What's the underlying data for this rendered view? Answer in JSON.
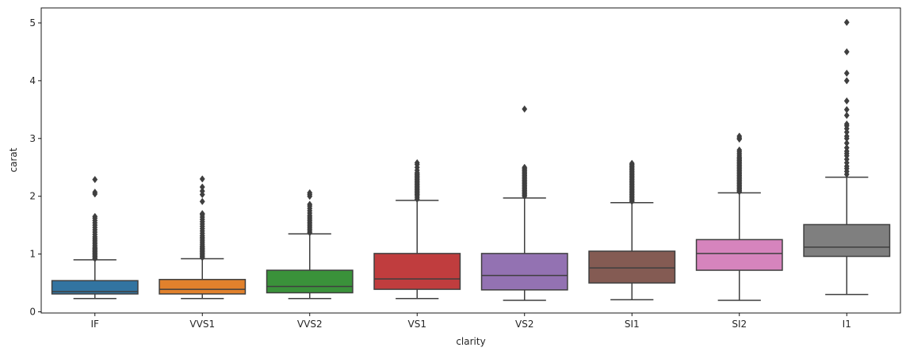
{
  "chart_data": {
    "type": "box",
    "title": "",
    "xlabel": "clarity",
    "ylabel": "carat",
    "ylim": [
      -0.02,
      5.26
    ],
    "yticks": [
      0,
      1,
      2,
      3,
      4,
      5
    ],
    "categories": [
      "IF",
      "VVS1",
      "VVS2",
      "VS1",
      "VS2",
      "SI1",
      "SI2",
      "I1"
    ],
    "colors": [
      "#3274a1",
      "#e1812c",
      "#3a923a",
      "#c03d3e",
      "#9372b2",
      "#845b53",
      "#d684bd",
      "#7f7f7f"
    ],
    "edge_color": "#3f3f3f",
    "boxes": [
      {
        "category": "IF",
        "whisker_low": 0.23,
        "q1": 0.31,
        "median": 0.35,
        "q3": 0.54,
        "whisker_high": 0.9,
        "outliers": [
          0.92,
          0.94,
          0.96,
          0.98,
          1.0,
          1.02,
          1.04,
          1.06,
          1.08,
          1.1,
          1.12,
          1.15,
          1.18,
          1.21,
          1.24,
          1.27,
          1.3,
          1.34,
          1.38,
          1.42,
          1.46,
          1.5,
          1.54,
          1.58,
          1.62,
          1.65,
          2.04,
          2.07,
          2.29
        ]
      },
      {
        "category": "VVS1",
        "whisker_low": 0.23,
        "q1": 0.31,
        "median": 0.39,
        "q3": 0.56,
        "whisker_high": 0.92,
        "outliers": [
          0.94,
          0.96,
          0.98,
          1.0,
          1.02,
          1.04,
          1.06,
          1.08,
          1.1,
          1.12,
          1.14,
          1.17,
          1.2,
          1.23,
          1.26,
          1.29,
          1.32,
          1.36,
          1.4,
          1.44,
          1.48,
          1.52,
          1.56,
          1.6,
          1.64,
          1.68,
          1.7,
          1.91,
          2.03,
          2.09,
          2.16,
          2.3
        ]
      },
      {
        "category": "VVS2",
        "whisker_low": 0.23,
        "q1": 0.33,
        "median": 0.44,
        "q3": 0.72,
        "whisker_high": 1.35,
        "outliers": [
          1.37,
          1.4,
          1.43,
          1.46,
          1.49,
          1.52,
          1.55,
          1.58,
          1.61,
          1.64,
          1.67,
          1.71,
          1.75,
          1.79,
          1.83,
          1.86,
          2.0,
          2.03,
          2.06
        ]
      },
      {
        "category": "VS1",
        "whisker_low": 0.23,
        "q1": 0.39,
        "median": 0.57,
        "q3": 1.01,
        "whisker_high": 1.93,
        "outliers": [
          1.95,
          1.98,
          2.01,
          2.03,
          2.05,
          2.07,
          2.09,
          2.11,
          2.13,
          2.15,
          2.17,
          2.19,
          2.21,
          2.23,
          2.25,
          2.27,
          2.29,
          2.31,
          2.33,
          2.35,
          2.37,
          2.39,
          2.41,
          2.45,
          2.5,
          2.55,
          2.58
        ]
      },
      {
        "category": "VS2",
        "whisker_low": 0.2,
        "q1": 0.38,
        "median": 0.63,
        "q3": 1.01,
        "whisker_high": 1.97,
        "outliers": [
          2.0,
          2.02,
          2.04,
          2.06,
          2.08,
          2.1,
          2.12,
          2.14,
          2.16,
          2.18,
          2.2,
          2.22,
          2.24,
          2.26,
          2.28,
          2.3,
          2.32,
          2.34,
          2.36,
          2.38,
          2.4,
          2.42,
          2.44,
          2.46,
          2.48,
          2.5,
          3.51
        ]
      },
      {
        "category": "SI1",
        "whisker_low": 0.21,
        "q1": 0.5,
        "median": 0.76,
        "q3": 1.05,
        "whisker_high": 1.89,
        "outliers": [
          1.91,
          1.93,
          1.95,
          1.97,
          1.99,
          2.01,
          2.03,
          2.05,
          2.07,
          2.09,
          2.11,
          2.13,
          2.15,
          2.17,
          2.19,
          2.21,
          2.23,
          2.25,
          2.27,
          2.29,
          2.31,
          2.33,
          2.35,
          2.37,
          2.39,
          2.41,
          2.43,
          2.45,
          2.47,
          2.49,
          2.51,
          2.53,
          2.55,
          2.57
        ]
      },
      {
        "category": "SI2",
        "whisker_low": 0.2,
        "q1": 0.72,
        "median": 1.01,
        "q3": 1.25,
        "whisker_high": 2.06,
        "outliers": [
          2.08,
          2.1,
          2.12,
          2.14,
          2.16,
          2.18,
          2.2,
          2.22,
          2.24,
          2.26,
          2.28,
          2.3,
          2.32,
          2.34,
          2.36,
          2.38,
          2.4,
          2.42,
          2.44,
          2.46,
          2.48,
          2.5,
          2.52,
          2.54,
          2.56,
          2.58,
          2.6,
          2.62,
          2.64,
          2.66,
          2.68,
          2.71,
          2.74,
          2.77,
          2.8,
          2.99,
          3.01,
          3.04
        ]
      },
      {
        "category": "I1",
        "whisker_low": 0.3,
        "q1": 0.96,
        "median": 1.12,
        "q3": 1.51,
        "whisker_high": 2.33,
        "outliers": [
          2.38,
          2.43,
          2.48,
          2.52,
          2.58,
          2.64,
          2.7,
          2.74,
          2.78,
          2.84,
          2.92,
          3.0,
          3.04,
          3.11,
          3.17,
          3.22,
          3.25,
          3.4,
          3.5,
          3.65,
          4.0,
          4.13,
          4.5,
          5.01
        ]
      }
    ]
  }
}
